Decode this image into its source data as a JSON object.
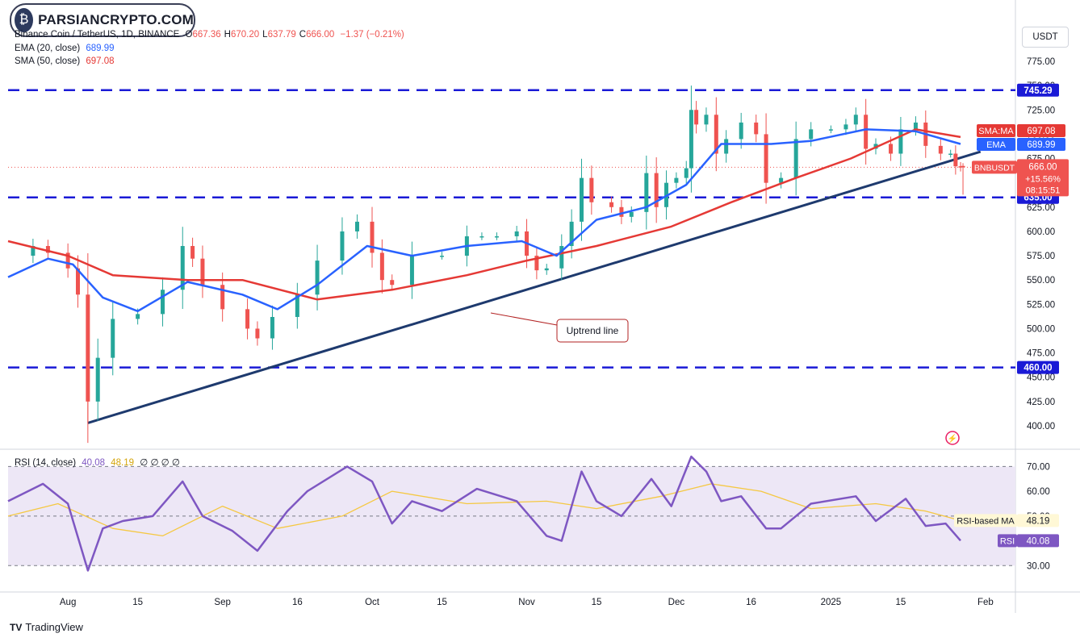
{
  "watermark": {
    "text": "PARSIANCRYPTO.COM"
  },
  "header": {
    "symbol_line": "Binance Coin / TetherUS, 1D, BINANCE",
    "ohlc": [
      {
        "k": "O",
        "v": "667.36"
      },
      {
        "k": "H",
        "v": "670.20"
      },
      {
        "k": "L",
        "v": "637.79"
      },
      {
        "k": "C",
        "v": "666.00"
      }
    ],
    "change": "−1.37 (−0.21%)",
    "ema_label": "EMA (20, close)",
    "ema_value": "689.99",
    "sma_label": "SMA (50, close)",
    "sma_value": "697.08",
    "rsi_label": "RSI (14, close)",
    "rsi_value": "40.08",
    "rsi_ma_value": "48.19",
    "rsi_extra": "∅ ∅ ∅ ∅"
  },
  "currency_button": "USDT",
  "footer": {
    "brand": "TradingView"
  },
  "colors": {
    "up": "#26a69a",
    "down": "#ef5350",
    "ema": "#2962ff",
    "sma": "#e53935",
    "level": "#1a1ad6",
    "trend": "#1e3a6e",
    "rsi": "#7e57c2",
    "rsi_ma": "#f5c842",
    "rsi_band": "#ede7f6",
    "annotation": "#b22222"
  },
  "chart_data": {
    "type": "candlestick",
    "symbol": "BNBUSDT",
    "timeframe": "1D",
    "exchange": "BINANCE",
    "y_ticks": [
      400,
      425,
      450,
      475,
      500,
      525,
      550,
      575,
      600,
      625,
      650,
      675,
      700,
      725,
      750,
      775
    ],
    "x_ticks": [
      {
        "label": "Aug",
        "date": "2024-08-01"
      },
      {
        "label": "15",
        "date": "2024-08-15"
      },
      {
        "label": "Sep",
        "date": "2024-09-01"
      },
      {
        "label": "16",
        "date": "2024-09-16"
      },
      {
        "label": "Oct",
        "date": "2024-10-01"
      },
      {
        "label": "15",
        "date": "2024-10-15"
      },
      {
        "label": "Nov",
        "date": "2024-11-01"
      },
      {
        "label": "15",
        "date": "2024-11-15"
      },
      {
        "label": "Dec",
        "date": "2024-12-01"
      },
      {
        "label": "16",
        "date": "2024-12-16"
      },
      {
        "label": "2025",
        "date": "2025-01-01"
      },
      {
        "label": "15",
        "date": "2025-01-15"
      },
      {
        "label": "Feb",
        "date": "2025-02-01"
      }
    ],
    "date_range": [
      "2024-07-20",
      "2025-02-07"
    ],
    "last_bar_date": "2025-01-27",
    "y_range": [
      390,
      790
    ],
    "close_series": [
      {
        "date": "2024-07-20",
        "value": 575
      },
      {
        "date": "2024-07-25",
        "value": 585
      },
      {
        "date": "2024-07-28",
        "value": 578
      },
      {
        "date": "2024-08-01",
        "value": 562
      },
      {
        "date": "2024-08-03",
        "value": 535
      },
      {
        "date": "2024-08-05",
        "value": 425
      },
      {
        "date": "2024-08-07",
        "value": 470
      },
      {
        "date": "2024-08-10",
        "value": 510
      },
      {
        "date": "2024-08-15",
        "value": 515
      },
      {
        "date": "2024-08-20",
        "value": 540
      },
      {
        "date": "2024-08-24",
        "value": 585
      },
      {
        "date": "2024-08-26",
        "value": 572
      },
      {
        "date": "2024-08-28",
        "value": 545
      },
      {
        "date": "2024-09-01",
        "value": 520
      },
      {
        "date": "2024-09-06",
        "value": 500
      },
      {
        "date": "2024-09-08",
        "value": 490
      },
      {
        "date": "2024-09-11",
        "value": 512
      },
      {
        "date": "2024-09-16",
        "value": 535
      },
      {
        "date": "2024-09-20",
        "value": 570
      },
      {
        "date": "2024-09-25",
        "value": 600
      },
      {
        "date": "2024-09-28",
        "value": 610
      },
      {
        "date": "2024-10-01",
        "value": 578
      },
      {
        "date": "2024-10-03",
        "value": 550
      },
      {
        "date": "2024-10-05",
        "value": 545
      },
      {
        "date": "2024-10-09",
        "value": 575
      },
      {
        "date": "2024-10-15",
        "value": 575
      },
      {
        "date": "2024-10-20",
        "value": 595
      },
      {
        "date": "2024-10-23",
        "value": 595
      },
      {
        "date": "2024-10-26",
        "value": 595
      },
      {
        "date": "2024-10-30",
        "value": 600
      },
      {
        "date": "2024-11-01",
        "value": 575
      },
      {
        "date": "2024-11-03",
        "value": 560
      },
      {
        "date": "2024-11-05",
        "value": 562
      },
      {
        "date": "2024-11-08",
        "value": 585
      },
      {
        "date": "2024-11-10",
        "value": 610
      },
      {
        "date": "2024-11-12",
        "value": 655
      },
      {
        "date": "2024-11-14",
        "value": 630
      },
      {
        "date": "2024-11-18",
        "value": 625
      },
      {
        "date": "2024-11-20",
        "value": 615
      },
      {
        "date": "2024-11-22",
        "value": 620
      },
      {
        "date": "2024-11-25",
        "value": 660
      },
      {
        "date": "2024-11-27",
        "value": 625
      },
      {
        "date": "2024-11-29",
        "value": 650
      },
      {
        "date": "2024-12-01",
        "value": 655
      },
      {
        "date": "2024-12-03",
        "value": 665
      },
      {
        "date": "2024-12-04",
        "value": 725
      },
      {
        "date": "2024-12-05",
        "value": 710
      },
      {
        "date": "2024-12-07",
        "value": 720
      },
      {
        "date": "2024-12-09",
        "value": 680
      },
      {
        "date": "2024-12-11",
        "value": 695
      },
      {
        "date": "2024-12-14",
        "value": 712
      },
      {
        "date": "2024-12-17",
        "value": 700
      },
      {
        "date": "2024-12-19",
        "value": 650
      },
      {
        "date": "2024-12-22",
        "value": 655
      },
      {
        "date": "2024-12-25",
        "value": 695
      },
      {
        "date": "2024-12-28",
        "value": 705
      },
      {
        "date": "2025-01-01",
        "value": 705
      },
      {
        "date": "2025-01-04",
        "value": 710
      },
      {
        "date": "2025-01-06",
        "value": 720
      },
      {
        "date": "2025-01-08",
        "value": 685
      },
      {
        "date": "2025-01-10",
        "value": 690
      },
      {
        "date": "2025-01-13",
        "value": 680
      },
      {
        "date": "2025-01-15",
        "value": 705
      },
      {
        "date": "2025-01-18",
        "value": 712
      },
      {
        "date": "2025-01-20",
        "value": 688
      },
      {
        "date": "2025-01-23",
        "value": 680
      },
      {
        "date": "2025-01-25",
        "value": 680
      },
      {
        "date": "2025-01-26",
        "value": 667
      },
      {
        "date": "2025-01-27",
        "value": 666
      }
    ],
    "last_bar": {
      "open": 667.36,
      "high": 670.2,
      "low": 637.79,
      "close": 666.0
    },
    "ema20": {
      "name": "EMA",
      "last": 689.99,
      "points": [
        {
          "date": "2024-07-20",
          "value": 553
        },
        {
          "date": "2024-07-28",
          "value": 572
        },
        {
          "date": "2024-08-02",
          "value": 566
        },
        {
          "date": "2024-08-08",
          "value": 532
        },
        {
          "date": "2024-08-15",
          "value": 518
        },
        {
          "date": "2024-08-25",
          "value": 548
        },
        {
          "date": "2024-09-05",
          "value": 535
        },
        {
          "date": "2024-09-12",
          "value": 520
        },
        {
          "date": "2024-09-20",
          "value": 545
        },
        {
          "date": "2024-09-30",
          "value": 585
        },
        {
          "date": "2024-10-09",
          "value": 575
        },
        {
          "date": "2024-10-20",
          "value": 585
        },
        {
          "date": "2024-10-31",
          "value": 590
        },
        {
          "date": "2024-11-07",
          "value": 575
        },
        {
          "date": "2024-11-15",
          "value": 612
        },
        {
          "date": "2024-11-25",
          "value": 625
        },
        {
          "date": "2024-12-03",
          "value": 648
        },
        {
          "date": "2024-12-10",
          "value": 690
        },
        {
          "date": "2024-12-20",
          "value": 690
        },
        {
          "date": "2024-12-28",
          "value": 693
        },
        {
          "date": "2025-01-08",
          "value": 705
        },
        {
          "date": "2025-01-18",
          "value": 703
        },
        {
          "date": "2025-01-27",
          "value": 689.99
        }
      ]
    },
    "sma50": {
      "name": "SMA:MA",
      "last": 697.08,
      "points": [
        {
          "date": "2024-07-20",
          "value": 590
        },
        {
          "date": "2024-08-01",
          "value": 575
        },
        {
          "date": "2024-08-10",
          "value": 555
        },
        {
          "date": "2024-08-25",
          "value": 550
        },
        {
          "date": "2024-09-05",
          "value": 550
        },
        {
          "date": "2024-09-20",
          "value": 530
        },
        {
          "date": "2024-10-05",
          "value": 540
        },
        {
          "date": "2024-10-20",
          "value": 555
        },
        {
          "date": "2024-11-01",
          "value": 570
        },
        {
          "date": "2024-11-15",
          "value": 585
        },
        {
          "date": "2024-11-30",
          "value": 605
        },
        {
          "date": "2024-12-12",
          "value": 630
        },
        {
          "date": "2024-12-25",
          "value": 655
        },
        {
          "date": "2025-01-05",
          "value": 675
        },
        {
          "date": "2025-01-18",
          "value": 705
        },
        {
          "date": "2025-01-27",
          "value": 697.08
        }
      ]
    },
    "horizontal_levels": [
      745.29,
      635.0,
      460.0
    ],
    "trend_line": {
      "from": {
        "date": "2024-08-05",
        "value": 403
      },
      "to": {
        "date": "2025-01-31",
        "value": 682
      }
    },
    "annotation": {
      "text": "Uptrend line"
    },
    "price_label": {
      "symbol": "BNBUSDT",
      "price": "666.00",
      "change": "+15.56%",
      "countdown": "08:15:51"
    },
    "rsi": {
      "name": "RSI",
      "period": 14,
      "last": 40.08,
      "ma_name": "RSI-based MA",
      "ma_last": 48.19,
      "y_ticks": [
        30,
        40,
        50,
        60,
        70
      ],
      "y_range": [
        20,
        76
      ],
      "upper": 70,
      "lower": 30,
      "mid": 50,
      "points": [
        {
          "date": "2024-07-20",
          "value": 56
        },
        {
          "date": "2024-07-27",
          "value": 63
        },
        {
          "date": "2024-08-01",
          "value": 55
        },
        {
          "date": "2024-08-05",
          "value": 28
        },
        {
          "date": "2024-08-08",
          "value": 45
        },
        {
          "date": "2024-08-12",
          "value": 48
        },
        {
          "date": "2024-08-18",
          "value": 50
        },
        {
          "date": "2024-08-24",
          "value": 64
        },
        {
          "date": "2024-08-28",
          "value": 50
        },
        {
          "date": "2024-09-03",
          "value": 44
        },
        {
          "date": "2024-09-08",
          "value": 36
        },
        {
          "date": "2024-09-14",
          "value": 52
        },
        {
          "date": "2024-09-18",
          "value": 60
        },
        {
          "date": "2024-09-26",
          "value": 70
        },
        {
          "date": "2024-10-01",
          "value": 64
        },
        {
          "date": "2024-10-05",
          "value": 47
        },
        {
          "date": "2024-10-09",
          "value": 56
        },
        {
          "date": "2024-10-15",
          "value": 52
        },
        {
          "date": "2024-10-22",
          "value": 61
        },
        {
          "date": "2024-10-30",
          "value": 56
        },
        {
          "date": "2024-11-05",
          "value": 42
        },
        {
          "date": "2024-11-08",
          "value": 40
        },
        {
          "date": "2024-11-12",
          "value": 68
        },
        {
          "date": "2024-11-15",
          "value": 56
        },
        {
          "date": "2024-11-20",
          "value": 50
        },
        {
          "date": "2024-11-26",
          "value": 65
        },
        {
          "date": "2024-11-30",
          "value": 54
        },
        {
          "date": "2024-12-04",
          "value": 74
        },
        {
          "date": "2024-12-07",
          "value": 68
        },
        {
          "date": "2024-12-10",
          "value": 56
        },
        {
          "date": "2024-12-14",
          "value": 58
        },
        {
          "date": "2024-12-19",
          "value": 45
        },
        {
          "date": "2024-12-22",
          "value": 45
        },
        {
          "date": "2024-12-28",
          "value": 55
        },
        {
          "date": "2025-01-06",
          "value": 58
        },
        {
          "date": "2025-01-10",
          "value": 48
        },
        {
          "date": "2025-01-16",
          "value": 57
        },
        {
          "date": "2025-01-20",
          "value": 46
        },
        {
          "date": "2025-01-24",
          "value": 47
        },
        {
          "date": "2025-01-27",
          "value": 40.08
        }
      ],
      "ma_points": [
        {
          "date": "2024-07-20",
          "value": 50
        },
        {
          "date": "2024-07-30",
          "value": 55
        },
        {
          "date": "2024-08-10",
          "value": 45
        },
        {
          "date": "2024-08-20",
          "value": 42
        },
        {
          "date": "2024-09-01",
          "value": 54
        },
        {
          "date": "2024-09-12",
          "value": 45
        },
        {
          "date": "2024-09-25",
          "value": 50
        },
        {
          "date": "2024-10-05",
          "value": 60
        },
        {
          "date": "2024-10-20",
          "value": 55
        },
        {
          "date": "2024-11-05",
          "value": 56
        },
        {
          "date": "2024-11-15",
          "value": 53
        },
        {
          "date": "2024-11-28",
          "value": 58
        },
        {
          "date": "2024-12-08",
          "value": 63
        },
        {
          "date": "2024-12-18",
          "value": 60
        },
        {
          "date": "2024-12-28",
          "value": 53
        },
        {
          "date": "2025-01-10",
          "value": 55
        },
        {
          "date": "2025-01-20",
          "value": 52
        },
        {
          "date": "2025-01-27",
          "value": 48.19
        }
      ]
    }
  }
}
